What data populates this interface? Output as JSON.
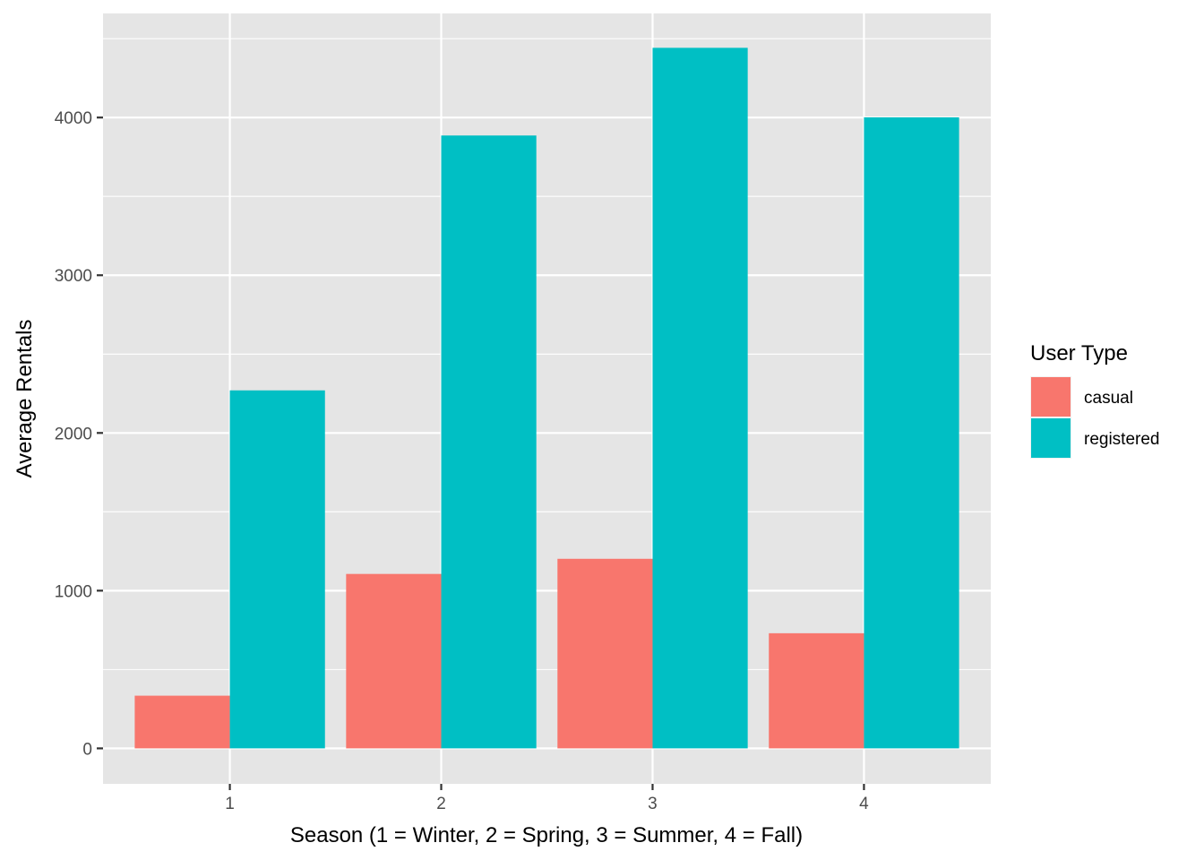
{
  "chart_data": {
    "type": "bar",
    "title": "",
    "xlabel": "Season (1 = Winter, 2 = Spring, 3 = Summer, 4 = Fall)",
    "ylabel": "Average Rentals",
    "categories": [
      "1",
      "2",
      "3",
      "4"
    ],
    "series": [
      {
        "name": "casual",
        "values": [
          334,
          1106,
          1202,
          730
        ],
        "color": "#F8766D"
      },
      {
        "name": "registered",
        "values": [
          2270,
          3886,
          4442,
          4001
        ],
        "color": "#00BFC4"
      }
    ],
    "ylim": [
      -225,
      4660
    ],
    "yticks": [
      0,
      1000,
      2000,
      3000,
      4000
    ],
    "ytick_labels": [
      "0",
      "1000",
      "2000",
      "3000",
      "4000"
    ],
    "grid": true,
    "legend": {
      "title": "User Type",
      "position": "right",
      "entries": [
        "casual",
        "registered"
      ]
    },
    "colors": {
      "panel_background": "#E5E5E5",
      "grid": "#FFFFFF",
      "casual": "#F8766D",
      "registered": "#00BFC4"
    }
  }
}
